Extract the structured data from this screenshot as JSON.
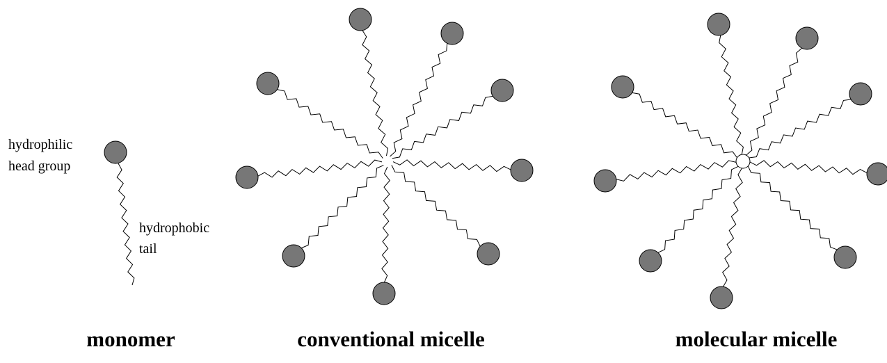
{
  "labels": {
    "head": [
      "hydrophilic",
      "head group"
    ],
    "tail": [
      "hydrophobic",
      "tail"
    ]
  },
  "captions": [
    "monomer",
    "conventional micelle",
    "molecular micelle"
  ]
}
